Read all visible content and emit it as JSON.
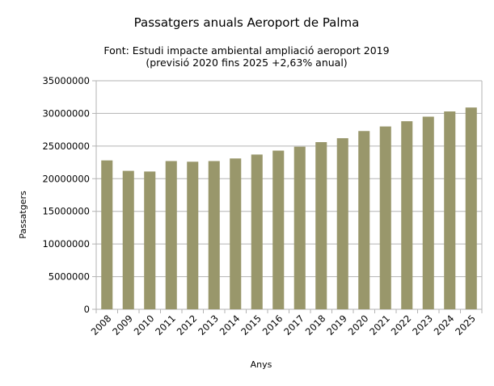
{
  "chart_data": {
    "type": "bar",
    "title": "Passatgers anuals Aeroport de Palma",
    "subtitle_line1": "Font: Estudi impacte ambiental ampliació aeroport 2019",
    "subtitle_line2": "(previsió 2020 fins 2025 +2,63% anual)",
    "xlabel": "Anys",
    "ylabel": "Passatgers",
    "categories": [
      "2008",
      "2009",
      "2010",
      "2011",
      "2012",
      "2013",
      "2014",
      "2015",
      "2016",
      "2017",
      "2018",
      "2019",
      "2020",
      "2021",
      "2022",
      "2023",
      "2024",
      "2025"
    ],
    "values": [
      22800000,
      21200000,
      21100000,
      22700000,
      22600000,
      22700000,
      23100000,
      23700000,
      24300000,
      24900000,
      25600000,
      26200000,
      27300000,
      28000000,
      28800000,
      29500000,
      30300000,
      30900000
    ],
    "ylim": [
      0,
      35000000
    ],
    "yticks": [
      "0",
      "5000000",
      "10000000",
      "15000000",
      "20000000",
      "25000000",
      "30000000",
      "35000000"
    ],
    "grid": true,
    "legend": "none",
    "bar_color": "#99976b"
  }
}
